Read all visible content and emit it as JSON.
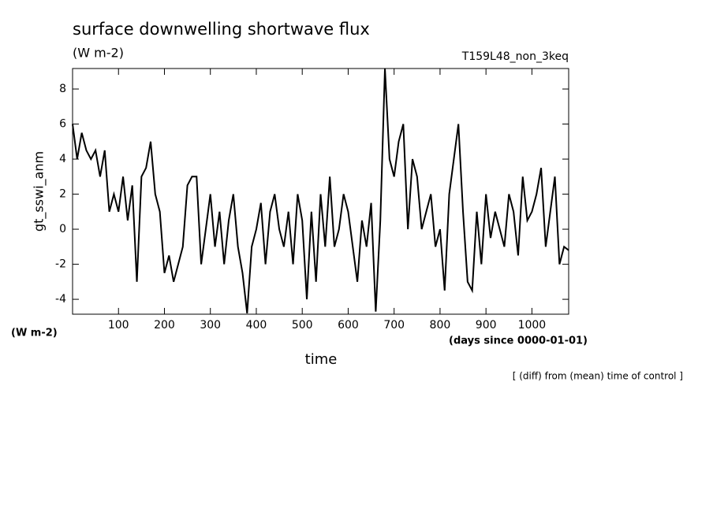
{
  "chart_data": {
    "type": "line",
    "title": "surface downwelling shortwave flux",
    "subtitle": "(W m-2)",
    "run_label": "T159L48_non_3keq",
    "ylabel": "gt_sswi_anm",
    "yunits": "(W m-2)",
    "xlabel": "time",
    "xunits": "(days since 0000-01-01)",
    "note": "[ (diff) from (mean) time of control ]",
    "color": "#000000",
    "xlim": [
      0,
      1080
    ],
    "ylim": [
      -4.85,
      9.17
    ],
    "xticks": [
      100,
      200,
      300,
      400,
      500,
      600,
      700,
      800,
      900,
      1000
    ],
    "yticks": [
      -4,
      -2,
      0,
      2,
      4,
      6,
      8
    ],
    "x": [
      0,
      10,
      20,
      30,
      40,
      50,
      60,
      70,
      80,
      90,
      100,
      110,
      120,
      130,
      140,
      150,
      160,
      170,
      180,
      190,
      200,
      210,
      220,
      230,
      240,
      250,
      260,
      270,
      280,
      290,
      300,
      310,
      320,
      330,
      340,
      350,
      360,
      370,
      380,
      390,
      400,
      410,
      420,
      430,
      440,
      450,
      460,
      470,
      480,
      490,
      500,
      510,
      520,
      530,
      540,
      550,
      560,
      570,
      580,
      590,
      600,
      610,
      620,
      630,
      640,
      650,
      660,
      670,
      680,
      690,
      700,
      710,
      720,
      730,
      740,
      750,
      760,
      770,
      780,
      790,
      800,
      810,
      820,
      830,
      840,
      850,
      860,
      870,
      880,
      890,
      900,
      910,
      920,
      930,
      940,
      950,
      960,
      970,
      980,
      990,
      1000,
      1010,
      1020,
      1030,
      1040,
      1050,
      1060,
      1070,
      1080
    ],
    "values": [
      6,
      4,
      5.5,
      4.5,
      4,
      4.5,
      3,
      4.5,
      1,
      2,
      1,
      3,
      0.5,
      2.5,
      -3,
      3,
      3.5,
      5,
      2,
      1,
      -2.5,
      -1.5,
      -3,
      -2,
      -1,
      2.5,
      3,
      3,
      -2,
      0,
      2,
      -1,
      1,
      -2,
      0.5,
      2,
      -1,
      -2.5,
      -4.8,
      -1,
      0,
      1.5,
      -2,
      1,
      2,
      0,
      -1,
      1,
      -2,
      2,
      0.5,
      -4,
      1,
      -3,
      2,
      -1,
      3,
      -1,
      0,
      2,
      1,
      -1,
      -3,
      0.5,
      -1,
      1.5,
      -4.7,
      0.5,
      9.17,
      4,
      3,
      5,
      6,
      0,
      4,
      3,
      0,
      1,
      2,
      -1,
      0,
      -3.5,
      2,
      4,
      6,
      1,
      -3,
      -3.5,
      1,
      -2,
      2,
      -0.5,
      1,
      0,
      -1,
      2,
      1,
      -1.5,
      3,
      0.5,
      1,
      2,
      3.5,
      -1,
      1,
      3,
      -2,
      -1,
      -1.2
    ]
  }
}
